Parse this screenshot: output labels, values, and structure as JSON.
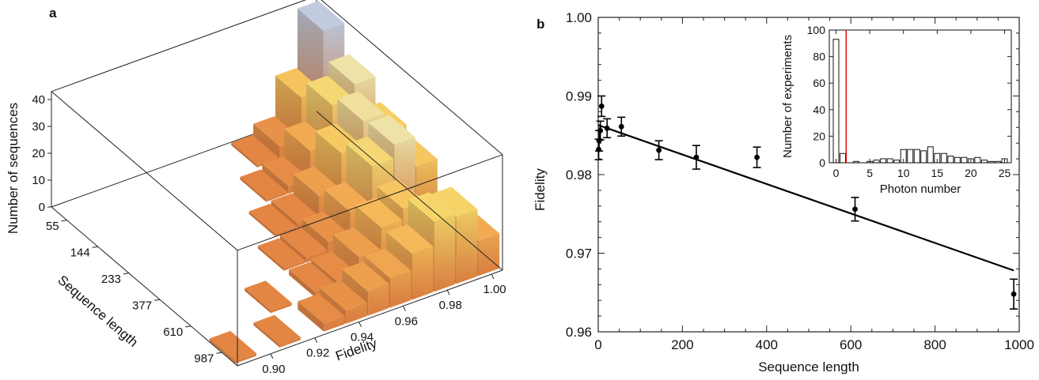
{
  "chart_data": [
    {
      "type": "bar3d",
      "panel_label": "a",
      "xlabel": "Fidelity",
      "ylabel": "Sequence length",
      "zlabel": "Number of sequences",
      "x_ticks": [
        "0.90",
        "0.92",
        "0.94",
        "0.96",
        "0.98",
        "1.00"
      ],
      "y_ticks": [
        "55",
        "144",
        "233",
        "377",
        "610",
        "987"
      ],
      "z_ticks": [
        "0",
        "10",
        "20",
        "30",
        "40"
      ],
      "fidelity_bins": [
        0.89,
        0.9,
        0.91,
        0.92,
        0.93,
        0.94,
        0.95,
        0.96,
        0.97,
        0.98,
        0.99,
        1.0
      ],
      "series": [
        {
          "sequence_length": 55,
          "counts": [
            0,
            0,
            0,
            0,
            0,
            0,
            0,
            0,
            1,
            5,
            20,
            42
          ]
        },
        {
          "sequence_length": 144,
          "counts": [
            0,
            0,
            0,
            0,
            0,
            0,
            0,
            1,
            3,
            13,
            27,
            32
          ]
        },
        {
          "sequence_length": 233,
          "counts": [
            0,
            0,
            0,
            0,
            0,
            0,
            1,
            2,
            9,
            22,
            31,
            24
          ]
        },
        {
          "sequence_length": 377,
          "counts": [
            0,
            0,
            0,
            0,
            0,
            1,
            2,
            5,
            13,
            27,
            32,
            21
          ]
        },
        {
          "sequence_length": 610,
          "counts": [
            0,
            0,
            0,
            1,
            0,
            2,
            3,
            9,
            17,
            21,
            10,
            3
          ]
        },
        {
          "sequence_length": 987,
          "counts": [
            1,
            0,
            1,
            0,
            3,
            5,
            9,
            11,
            17,
            26,
            25,
            13
          ]
        }
      ]
    },
    {
      "type": "scatter",
      "panel_label": "b",
      "xlabel": "Sequence length",
      "ylabel": "Fidelity",
      "xlim": [
        0,
        1000
      ],
      "ylim": [
        0.96,
        1.0
      ],
      "x_ticks": [
        "0",
        "200",
        "400",
        "600",
        "800",
        "1000"
      ],
      "y_ticks": [
        "0.96",
        "0.97",
        "0.98",
        "0.99",
        "1.00"
      ],
      "points": [
        {
          "x": 1,
          "y": 0.9832,
          "err": 0.0013
        },
        {
          "x": 2,
          "y": 0.9843,
          "err": 0.0013
        },
        {
          "x": 5,
          "y": 0.9856,
          "err": 0.0012
        },
        {
          "x": 8,
          "y": 0.9887,
          "err": 0.0013
        },
        {
          "x": 21,
          "y": 0.9859,
          "err": 0.0012
        },
        {
          "x": 55,
          "y": 0.9861,
          "err": 0.0012
        },
        {
          "x": 144,
          "y": 0.9831,
          "err": 0.0012
        },
        {
          "x": 233,
          "y": 0.9822,
          "err": 0.0015
        },
        {
          "x": 377,
          "y": 0.9822,
          "err": 0.0013
        },
        {
          "x": 610,
          "y": 0.9756,
          "err": 0.0015
        },
        {
          "x": 987,
          "y": 0.9648,
          "err": 0.0019
        }
      ],
      "fit_line": {
        "x": [
          0,
          987
        ],
        "y": [
          0.9863,
          0.9678
        ]
      },
      "inset": {
        "type": "bar",
        "xlabel": "Photon number",
        "ylabel": "Number of experiments",
        "xlim": [
          -1,
          26
        ],
        "ylim": [
          0,
          100
        ],
        "x_ticks": [
          "0",
          "5",
          "10",
          "15",
          "20",
          "25"
        ],
        "y_ticks": [
          "0",
          "20",
          "40",
          "60",
          "80",
          "100"
        ],
        "threshold_x": 1.5,
        "threshold_color": "#e00000",
        "x": [
          0,
          1,
          2,
          3,
          4,
          5,
          6,
          7,
          8,
          9,
          10,
          11,
          12,
          13,
          14,
          15,
          16,
          17,
          18,
          19,
          20,
          21,
          22,
          23,
          24,
          25
        ],
        "values": [
          93,
          7,
          0,
          1,
          0,
          1,
          2,
          3,
          3,
          2,
          10,
          10,
          10,
          9,
          12,
          7,
          7,
          5,
          4,
          4,
          3,
          4,
          2,
          1,
          1,
          3
        ]
      }
    }
  ]
}
